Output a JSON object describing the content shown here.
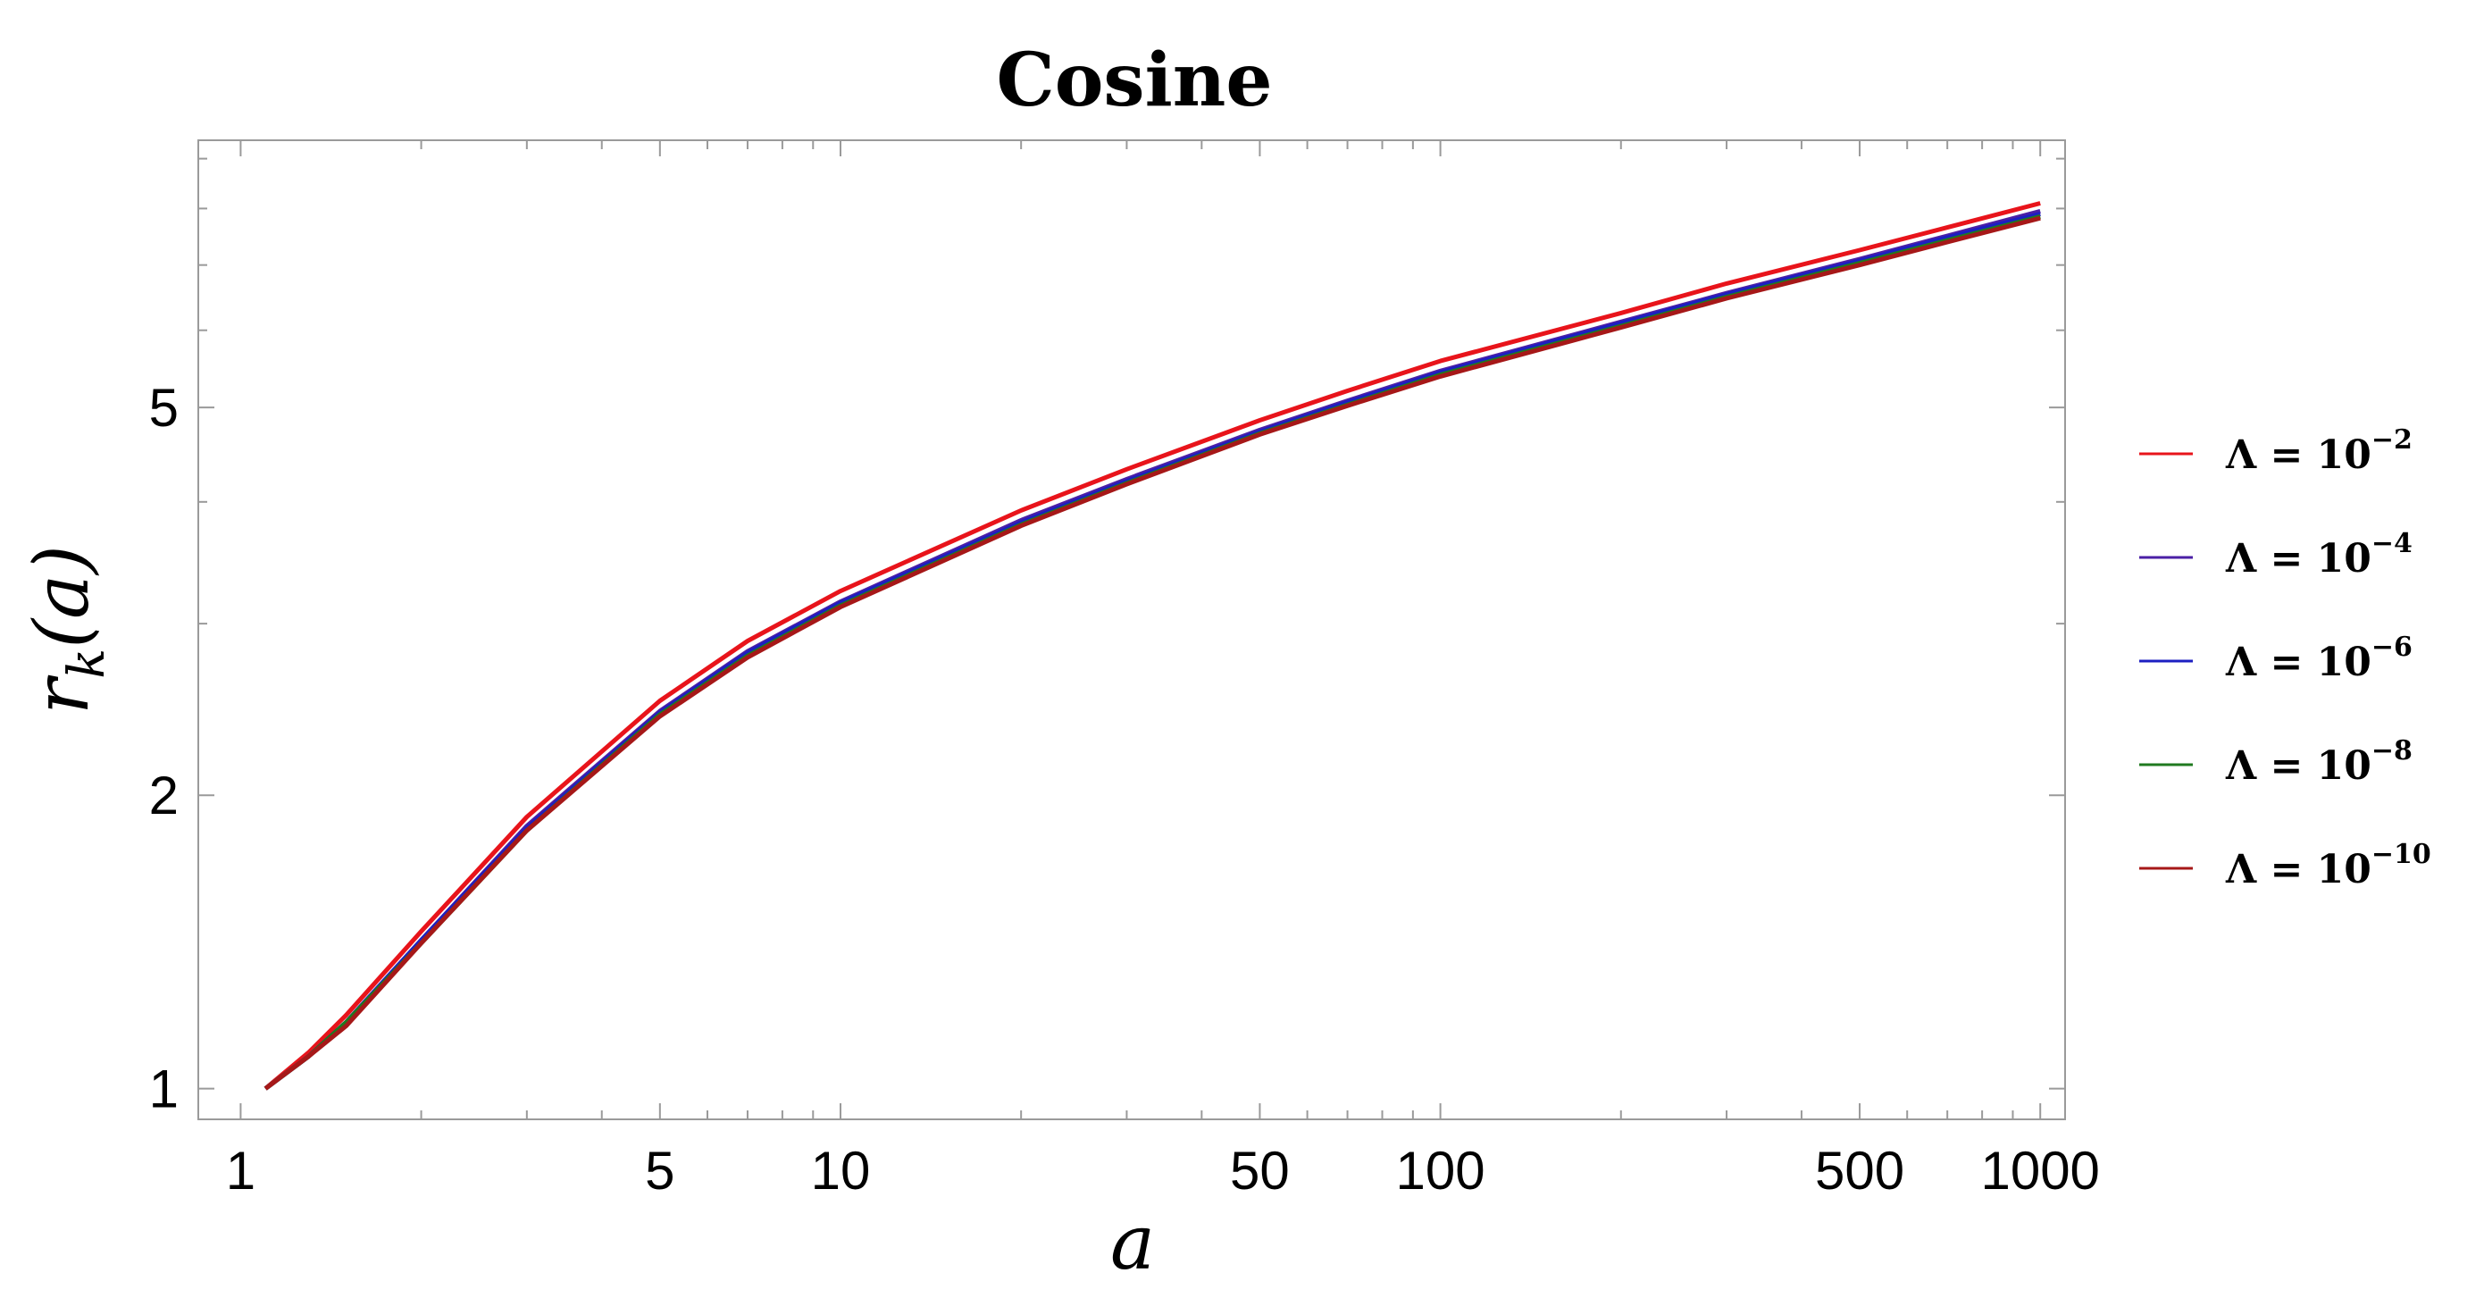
{
  "chart_data": {
    "type": "line",
    "title": "Cosine",
    "xlabel": "a",
    "ylabel": "r_k(a)",
    "x_scale": "log",
    "y_scale": "log",
    "xlim": [
      0.85,
      1100
    ],
    "ylim": [
      0.93,
      9.4
    ],
    "x_ticks": [
      1,
      5,
      10,
      50,
      100,
      500,
      1000
    ],
    "x_tick_labels": [
      "1",
      "5",
      "10",
      "50",
      "100",
      "500",
      "1000"
    ],
    "y_ticks": [
      1,
      2,
      5
    ],
    "y_tick_labels": [
      "1",
      "2",
      "5"
    ],
    "grid": false,
    "legend_position": "right",
    "x": [
      1.1,
      1.3,
      1.5,
      2,
      3,
      5,
      7,
      10,
      20,
      30,
      50,
      70,
      100,
      200,
      300,
      500,
      700,
      1000
    ],
    "series": [
      {
        "name": "Λ = 10",
        "exponent": "−2",
        "color": "#e8141b",
        "values": [
          1.0,
          1.09,
          1.19,
          1.45,
          1.9,
          2.5,
          2.88,
          3.24,
          3.92,
          4.32,
          4.85,
          5.2,
          5.58,
          6.25,
          6.7,
          7.25,
          7.65,
          8.1
        ]
      },
      {
        "name": "Λ = 10",
        "exponent": "−4",
        "color": "#4b1fa6",
        "values": [
          1.0,
          1.08,
          1.17,
          1.42,
          1.86,
          2.44,
          2.81,
          3.16,
          3.83,
          4.22,
          4.74,
          5.08,
          5.45,
          6.12,
          6.55,
          7.1,
          7.5,
          7.95
        ]
      },
      {
        "name": "Λ = 10",
        "exponent": "−6",
        "color": "#1c1fc2",
        "values": [
          1.0,
          1.08,
          1.17,
          1.42,
          1.85,
          2.43,
          2.8,
          3.15,
          3.81,
          4.2,
          4.72,
          5.06,
          5.43,
          6.1,
          6.53,
          7.07,
          7.47,
          7.9
        ]
      },
      {
        "name": "Λ = 10",
        "exponent": "−8",
        "color": "#1f7a1f",
        "values": [
          1.0,
          1.08,
          1.17,
          1.41,
          1.84,
          2.42,
          2.78,
          3.13,
          3.79,
          4.18,
          4.7,
          5.03,
          5.4,
          6.06,
          6.49,
          7.03,
          7.42,
          7.85
        ]
      },
      {
        "name": "Λ = 10",
        "exponent": "−10",
        "color": "#a61818",
        "values": [
          1.0,
          1.08,
          1.16,
          1.41,
          1.84,
          2.41,
          2.77,
          3.12,
          3.78,
          4.17,
          4.69,
          5.02,
          5.38,
          6.04,
          6.47,
          7.0,
          7.39,
          7.82
        ]
      }
    ]
  }
}
